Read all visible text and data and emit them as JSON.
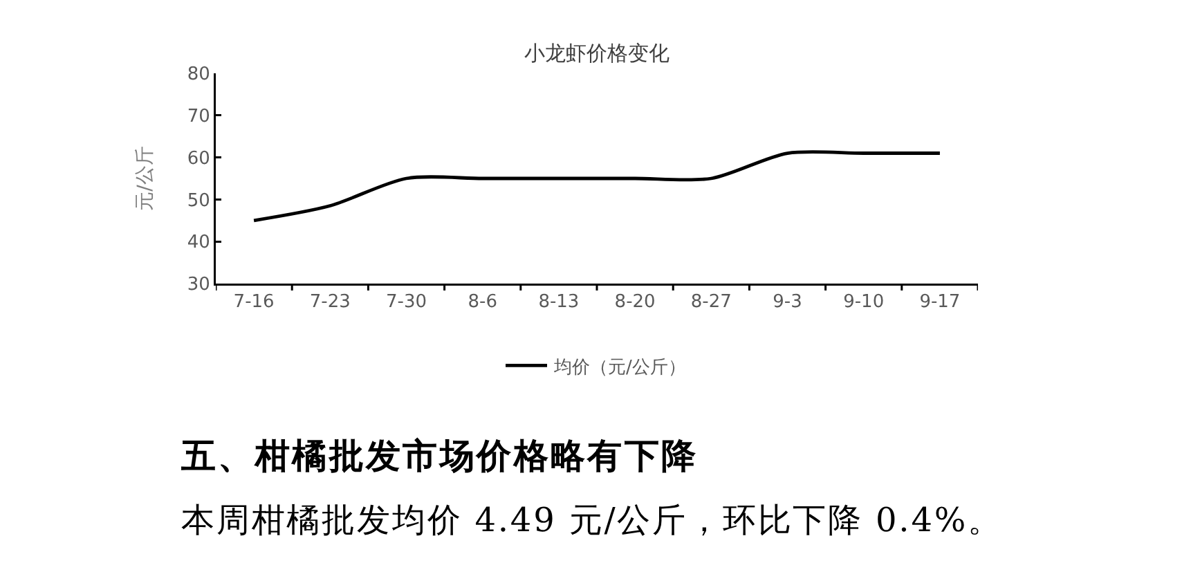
{
  "chart_data": {
    "type": "line",
    "title": "小龙虾价格变化",
    "ylabel": "元/公斤",
    "categories": [
      "7-16",
      "7-23",
      "7-30",
      "8-6",
      "8-13",
      "8-20",
      "8-27",
      "9-3",
      "9-10",
      "9-17"
    ],
    "series": [
      {
        "name": "均价（元/公斤）",
        "color": "#000000",
        "values": [
          45,
          48.5,
          55,
          55,
          55,
          55,
          55,
          61,
          61,
          61
        ]
      }
    ],
    "ylim": [
      30,
      80
    ],
    "yticks": [
      30,
      40,
      50,
      60,
      70,
      80
    ],
    "grid": false,
    "legend": "bottom",
    "marker": "none",
    "line_style": "solid",
    "annotations": [
      "五、柑橘批发市场价格略有下降",
      "本周柑橘批发均价 4.49 元/公斤，环比下降 0.4%。"
    ]
  }
}
